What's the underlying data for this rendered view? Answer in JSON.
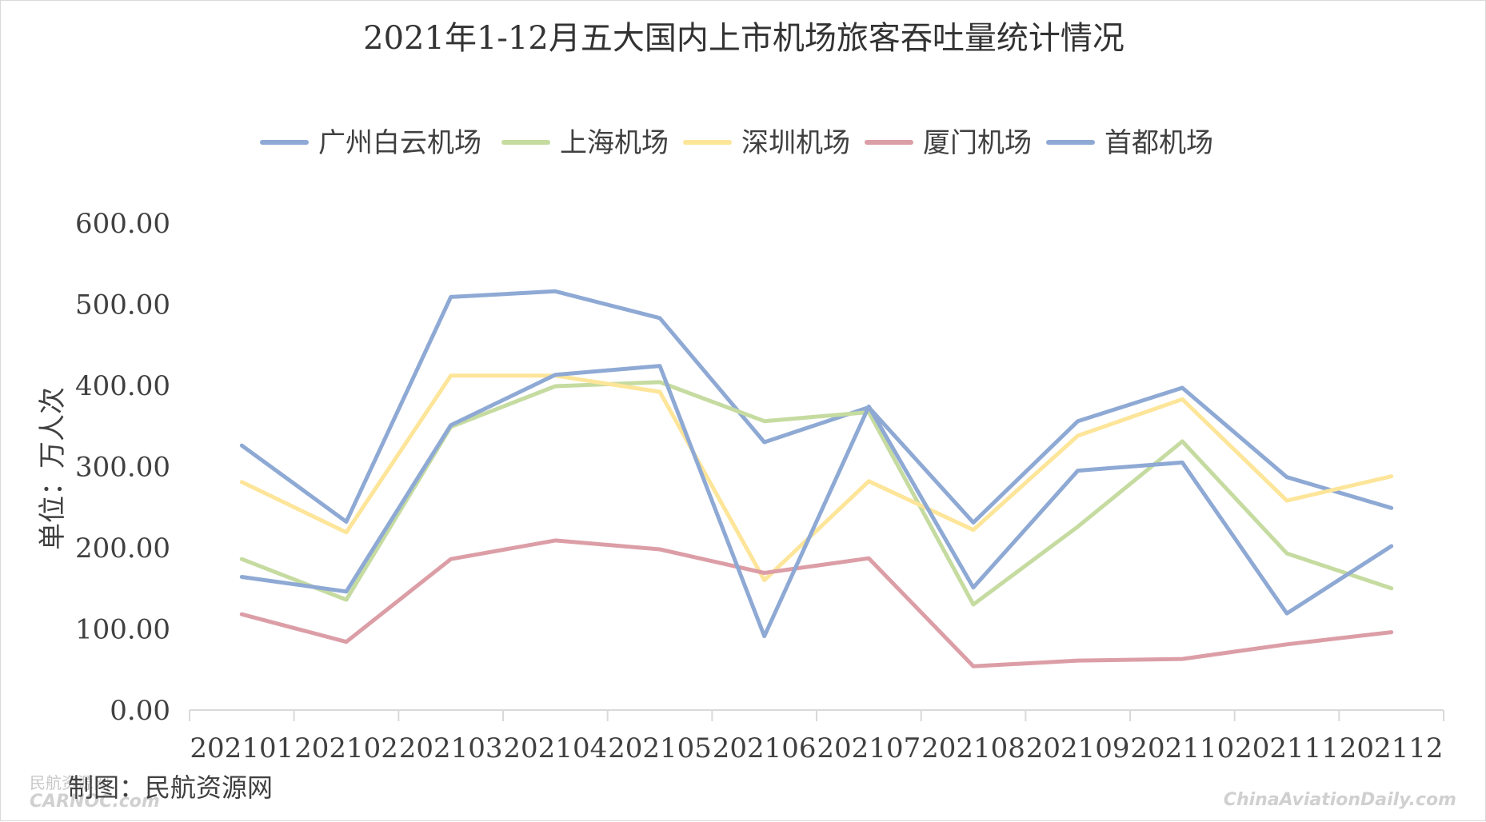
{
  "chart_data": {
    "type": "line",
    "title": "2021年1-12月五大国内上市机场旅客吞吐量统计情况",
    "ylabel": "单位：万人次",
    "xlabel": "",
    "categories": [
      "202101",
      "202102",
      "202103",
      "202104",
      "202105",
      "202106",
      "202107",
      "202108",
      "202109",
      "202110",
      "202111",
      "202112"
    ],
    "y_ticks": [
      "0.00",
      "100.00",
      "200.00",
      "300.00",
      "400.00",
      "500.00",
      "600.00"
    ],
    "ylim": [
      0,
      600
    ],
    "legend_position": "top",
    "grid": false,
    "series": [
      {
        "name": "广州白云机场",
        "color": "#8ea9d4",
        "values": [
          326,
          232,
          509,
          516,
          483,
          330,
          373,
          231,
          356,
          397,
          287,
          249
        ]
      },
      {
        "name": "上海机场",
        "color": "#c5dba0",
        "values": [
          186,
          136,
          349,
          399,
          404,
          356,
          367,
          130,
          226,
          331,
          193,
          150
        ]
      },
      {
        "name": "深圳机场",
        "color": "#fde599",
        "values": [
          281,
          219,
          412,
          412,
          392,
          160,
          282,
          222,
          338,
          383,
          258,
          288
        ]
      },
      {
        "name": "厦门机场",
        "color": "#dc9ea6",
        "values": [
          118,
          84,
          186,
          209,
          198,
          169,
          187,
          54,
          61,
          63,
          81,
          96
        ]
      },
      {
        "name": "首都机场",
        "color": "#8ea9d4",
        "values": [
          164,
          146,
          351,
          413,
          424,
          91,
          374,
          151,
          295,
          305,
          119,
          202
        ]
      }
    ]
  },
  "credit": "制图：民航资源网",
  "watermark_left_top": "民航资源网",
  "watermark_left_bottom": "CARNOC.com",
  "watermark_right": "ChinaAviationDaily.com"
}
